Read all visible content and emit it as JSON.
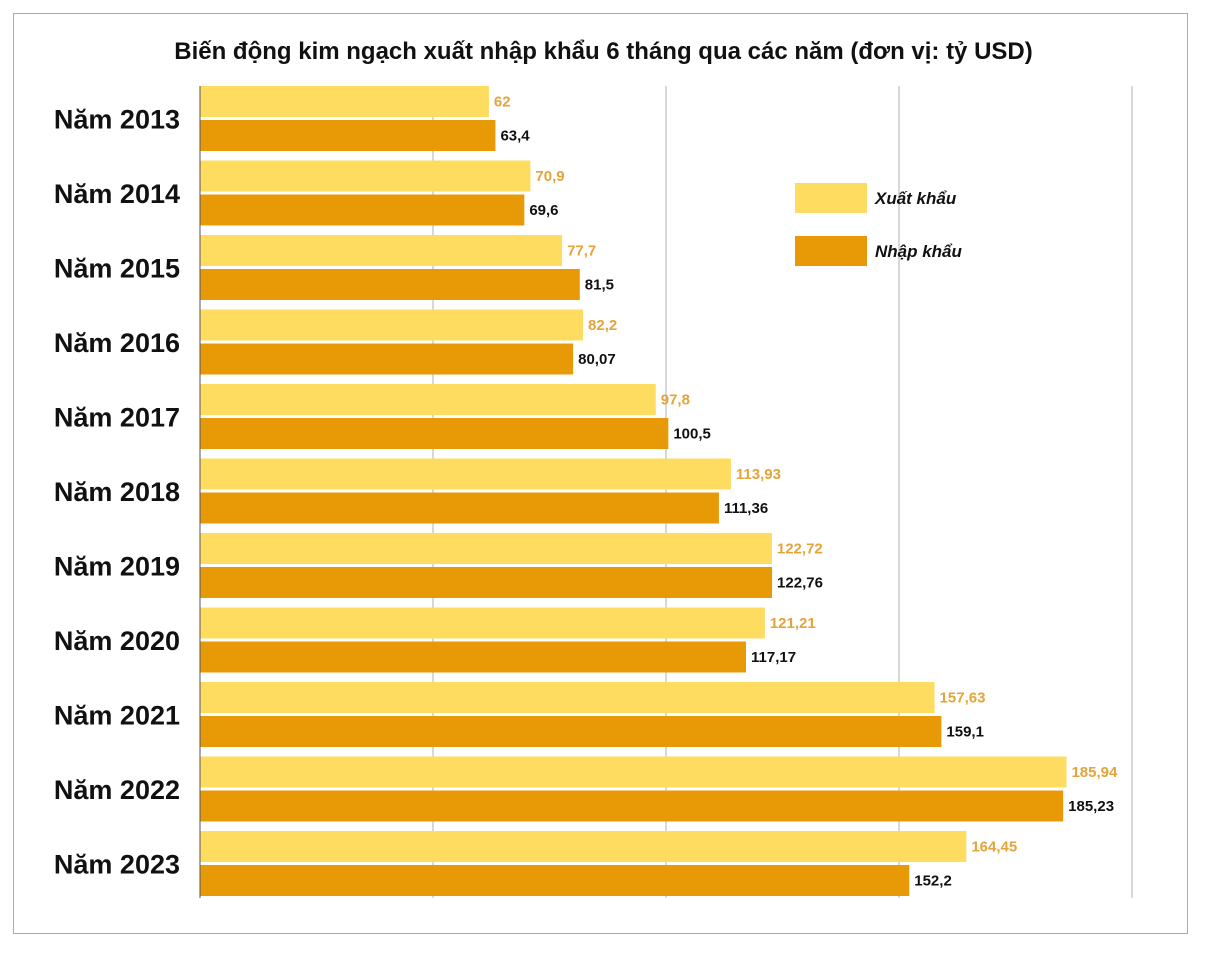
{
  "chart_data": {
    "type": "bar",
    "orientation": "horizontal",
    "title": "Biến động kim ngạch xuất nhập khẩu 6 tháng qua các năm (đơn vị: tỷ USD)",
    "categories": [
      "Năm 2013",
      "Năm 2014",
      "Năm 2015",
      "Năm 2016",
      "Năm 2017",
      "Năm 2018",
      "Năm 2019",
      "Năm 2020",
      "Năm 2021",
      "Năm 2022",
      "Năm 2023"
    ],
    "series": [
      {
        "name": "Xuất khẩu",
        "color": "#fedc5f",
        "label_color": "#e3a43a",
        "values": [
          62,
          70.9,
          77.7,
          82.2,
          97.8,
          113.93,
          122.72,
          121.21,
          157.63,
          185.94,
          164.45
        ],
        "labels": [
          "62",
          "70,9",
          "77,7",
          "82,2",
          "97,8",
          "113,93",
          "122,72",
          "121,21",
          "157,63",
          "185,94",
          "164,45"
        ]
      },
      {
        "name": "Nhập khẩu",
        "color": "#e89a06",
        "label_color": "#111111",
        "values": [
          63.4,
          69.6,
          81.5,
          80.07,
          100.5,
          111.36,
          122.76,
          117.17,
          159.1,
          185.23,
          152.2
        ],
        "labels": [
          "63,4",
          "69,6",
          "81,5",
          "80,07",
          "100,5",
          "111,36",
          "122,76",
          "117,17",
          "159,1",
          "185,23",
          "152,2"
        ]
      }
    ],
    "xlim": [
      0,
      200
    ],
    "grid": true,
    "legend_position": "top-right",
    "frame_color": "#e3a43a",
    "grid_color": "#cccccc"
  }
}
